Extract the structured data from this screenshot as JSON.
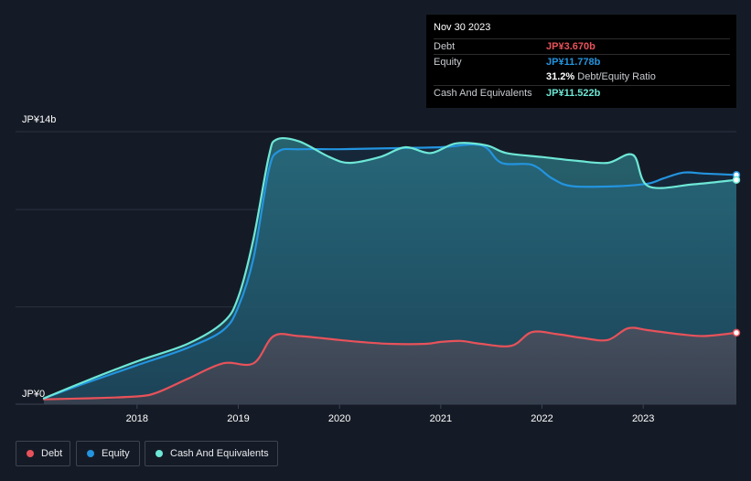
{
  "tooltip": {
    "date": "Nov 30 2023",
    "rows": [
      {
        "label": "Debt",
        "value": "JP¥3.670b",
        "color": "#e8525a"
      },
      {
        "label": "Equity",
        "value": "JP¥11.778b",
        "color": "#2394df"
      },
      {
        "ratio_value": "31.2%",
        "ratio_label": "Debt/Equity Ratio"
      },
      {
        "label": "Cash And Equivalents",
        "value": "JP¥11.522b",
        "color": "#6ee7d6"
      }
    ]
  },
  "legend": [
    {
      "label": "Debt",
      "color": "#e8525a"
    },
    {
      "label": "Equity",
      "color": "#2394df"
    },
    {
      "label": "Cash And Equivalents",
      "color": "#6ee7d6"
    }
  ],
  "chart_data": {
    "type": "area",
    "title": "",
    "xlabel": "",
    "ylabel": "",
    "ylim": [
      0,
      14
    ],
    "xlim": [
      2017.08,
      2023.92
    ],
    "y_tick_labels": [
      {
        "value": 0,
        "label": "JP¥0"
      },
      {
        "value": 14,
        "label": "JP¥14b"
      }
    ],
    "x_ticks": [
      {
        "value": 2018.0,
        "label": "2018"
      },
      {
        "value": 2019.0,
        "label": "2019"
      },
      {
        "value": 2020.0,
        "label": "2020"
      },
      {
        "value": 2021.0,
        "label": "2021"
      },
      {
        "value": 2022.0,
        "label": "2022"
      },
      {
        "value": 2023.0,
        "label": "2023"
      }
    ],
    "gridlines": [
      0,
      5,
      10,
      14
    ],
    "series": [
      {
        "name": "Equity",
        "color": "#2394df",
        "x": [
          2017.08,
          2017.5,
          2018.0,
          2018.5,
          2018.85,
          2019.0,
          2019.15,
          2019.3,
          2019.4,
          2019.6,
          2020.0,
          2020.5,
          2021.0,
          2021.4,
          2021.6,
          2021.9,
          2022.1,
          2022.3,
          2022.75,
          2023.0,
          2023.1,
          2023.2,
          2023.4,
          2023.6,
          2023.92
        ],
        "values": [
          0.3,
          1.1,
          2.0,
          2.9,
          3.8,
          5.0,
          7.5,
          12.0,
          13.0,
          13.1,
          13.1,
          13.15,
          13.2,
          13.3,
          12.4,
          12.3,
          11.6,
          11.2,
          11.2,
          11.3,
          11.4,
          11.6,
          11.9,
          11.85,
          11.778
        ]
      },
      {
        "name": "Cash And Equivalents",
        "color": "#6ee7d6",
        "x": [
          2017.08,
          2017.5,
          2018.0,
          2018.5,
          2018.85,
          2019.0,
          2019.15,
          2019.3,
          2019.38,
          2019.6,
          2019.9,
          2020.1,
          2020.4,
          2020.65,
          2020.9,
          2021.15,
          2021.45,
          2021.65,
          2022.0,
          2022.35,
          2022.65,
          2022.9,
          2023.05,
          2023.5,
          2023.92
        ],
        "values": [
          0.3,
          1.2,
          2.2,
          3.1,
          4.2,
          5.5,
          8.5,
          12.7,
          13.6,
          13.5,
          12.7,
          12.4,
          12.7,
          13.2,
          12.9,
          13.4,
          13.3,
          12.9,
          12.7,
          12.5,
          12.4,
          12.8,
          11.2,
          11.3,
          11.522
        ]
      },
      {
        "name": "Debt",
        "color": "#e8525a",
        "x": [
          2017.08,
          2017.5,
          2018.0,
          2018.2,
          2018.5,
          2018.85,
          2019.15,
          2019.35,
          2019.6,
          2020.0,
          2020.2,
          2020.5,
          2020.85,
          2021.0,
          2021.2,
          2021.4,
          2021.7,
          2021.9,
          2022.15,
          2022.4,
          2022.65,
          2022.85,
          2023.05,
          2023.35,
          2023.6,
          2023.92
        ],
        "values": [
          0.25,
          0.3,
          0.4,
          0.6,
          1.3,
          2.1,
          2.1,
          3.5,
          3.5,
          3.3,
          3.2,
          3.1,
          3.1,
          3.2,
          3.25,
          3.1,
          3.0,
          3.7,
          3.6,
          3.4,
          3.3,
          3.9,
          3.8,
          3.6,
          3.5,
          3.67
        ]
      }
    ]
  }
}
